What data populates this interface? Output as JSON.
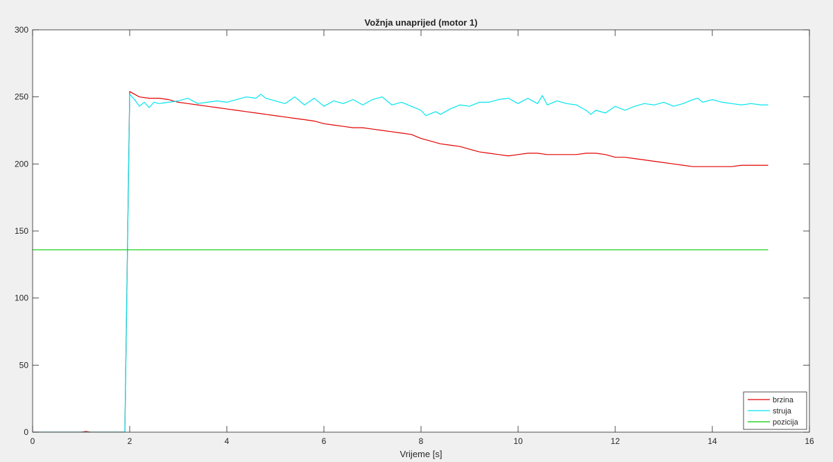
{
  "chart_data": {
    "type": "line",
    "title": "Vožnja unaprijed (motor 1)",
    "xlabel": "Vrijeme [s]",
    "ylabel": "",
    "xlim": [
      0,
      16
    ],
    "ylim": [
      0,
      300
    ],
    "xticks": [
      0,
      2,
      4,
      6,
      8,
      10,
      12,
      14,
      16
    ],
    "yticks": [
      0,
      50,
      100,
      150,
      200,
      250,
      300
    ],
    "grid": false,
    "legend_position": "bottom-right",
    "colors": {
      "brzina": "#e30000",
      "struja": "#00e5ee",
      "pozicija": "#00cc00",
      "axes": "#262626",
      "background": "#ffffff",
      "figure": "#f0f0f0"
    },
    "series": [
      {
        "name": "brzina",
        "color": "#e30000",
        "x": [
          0,
          1.0,
          1.1,
          1.2,
          1.9,
          2.0,
          2.2,
          2.4,
          2.6,
          2.8,
          3.0,
          3.2,
          3.4,
          3.6,
          3.8,
          4.0,
          4.2,
          4.4,
          4.6,
          4.8,
          5.0,
          5.2,
          5.4,
          5.6,
          5.8,
          6.0,
          6.2,
          6.4,
          6.6,
          6.8,
          7.0,
          7.2,
          7.4,
          7.6,
          7.8,
          8.0,
          8.2,
          8.4,
          8.6,
          8.8,
          9.0,
          9.2,
          9.4,
          9.6,
          9.8,
          10.0,
          10.2,
          10.4,
          10.6,
          10.8,
          11.0,
          11.2,
          11.4,
          11.6,
          11.8,
          12.0,
          12.2,
          12.4,
          12.6,
          12.8,
          13.0,
          13.2,
          13.4,
          13.6,
          13.8,
          14.0,
          14.2,
          14.4,
          14.6,
          14.8,
          15.0,
          15.15
        ],
        "values": [
          0,
          0,
          0.5,
          0,
          0,
          254,
          250,
          249,
          249,
          248,
          246,
          245,
          244,
          243,
          242,
          241,
          240,
          239,
          238,
          237,
          236,
          235,
          234,
          233,
          232,
          230,
          229,
          228,
          227,
          227,
          226,
          225,
          224,
          223,
          222,
          219,
          217,
          215,
          214,
          213,
          211,
          209,
          208,
          207,
          206,
          207,
          208,
          208,
          207,
          207,
          207,
          207,
          208,
          208,
          207,
          205,
          205,
          204,
          203,
          202,
          201,
          200,
          199,
          198,
          198,
          198,
          198,
          198,
          199,
          199,
          199,
          199
        ]
      },
      {
        "name": "struja",
        "color": "#00e5ee",
        "x": [
          0,
          1.9,
          2.0,
          2.1,
          2.2,
          2.3,
          2.4,
          2.5,
          2.6,
          2.8,
          3.0,
          3.2,
          3.4,
          3.6,
          3.8,
          4.0,
          4.2,
          4.4,
          4.6,
          4.7,
          4.8,
          5.0,
          5.2,
          5.4,
          5.6,
          5.8,
          6.0,
          6.2,
          6.4,
          6.6,
          6.8,
          7.0,
          7.2,
          7.4,
          7.6,
          7.8,
          8.0,
          8.1,
          8.3,
          8.4,
          8.6,
          8.8,
          9.0,
          9.2,
          9.4,
          9.6,
          9.8,
          10.0,
          10.2,
          10.4,
          10.5,
          10.6,
          10.8,
          11.0,
          11.2,
          11.4,
          11.5,
          11.6,
          11.8,
          12.0,
          12.2,
          12.4,
          12.6,
          12.8,
          13.0,
          13.2,
          13.4,
          13.6,
          13.7,
          13.8,
          14.0,
          14.2,
          14.4,
          14.6,
          14.8,
          15.0,
          15.15
        ],
        "values": [
          0,
          0,
          252,
          248,
          243,
          246,
          242,
          246,
          245,
          246,
          247,
          249,
          245,
          246,
          247,
          246,
          248,
          250,
          249,
          252,
          249,
          247,
          245,
          250,
          244,
          249,
          243,
          247,
          245,
          248,
          244,
          248,
          250,
          244,
          246,
          243,
          240,
          236,
          239,
          237,
          241,
          244,
          243,
          246,
          246,
          248,
          249,
          245,
          249,
          245,
          251,
          244,
          247,
          245,
          244,
          240,
          237,
          240,
          238,
          243,
          240,
          243,
          245,
          244,
          246,
          243,
          245,
          248,
          249,
          246,
          248,
          246,
          245,
          244,
          245,
          244,
          244
        ]
      },
      {
        "name": "pozicija",
        "color": "#00cc00",
        "x": [
          0,
          15.15
        ],
        "values": [
          136,
          136
        ]
      }
    ]
  }
}
